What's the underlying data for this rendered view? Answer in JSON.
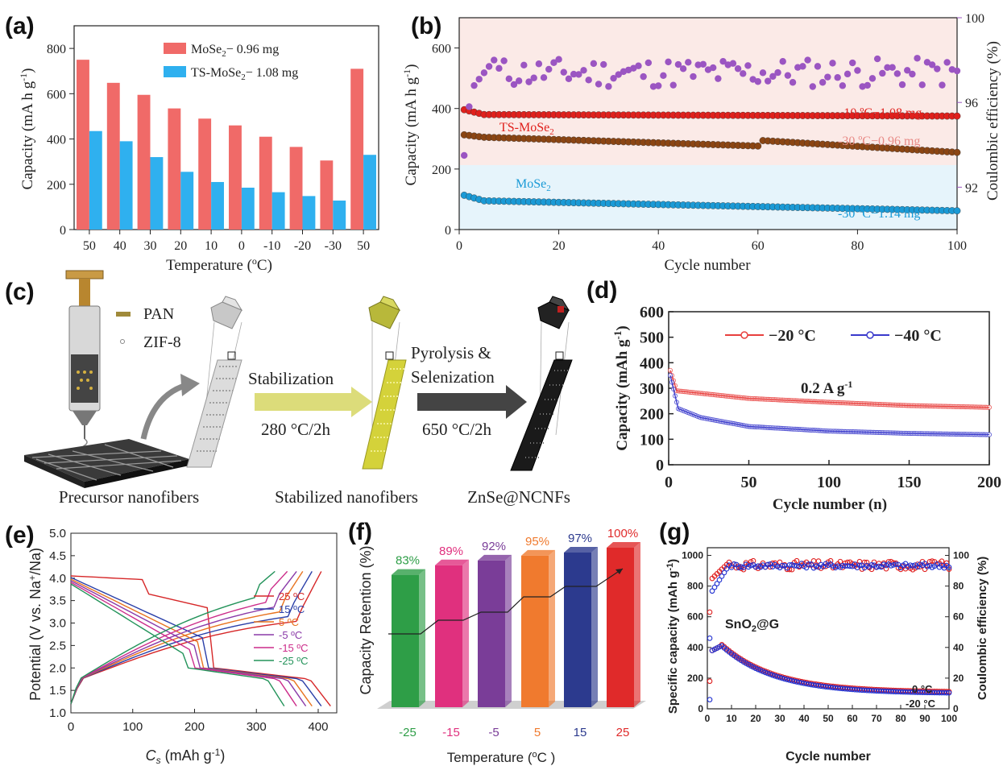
{
  "panels": {
    "a": {
      "letter": "(a)",
      "chart_data": {
        "type": "bar",
        "categories": [
          "50",
          "40",
          "30",
          "20",
          "10",
          "0",
          "-10",
          "-20",
          "-30",
          "50"
        ],
        "series": [
          {
            "name": "MoSe2− 0.96 mg",
            "color": "#f06a68",
            "values": [
              750,
              648,
              595,
              535,
              490,
              460,
              410,
              365,
              305,
              710
            ]
          },
          {
            "name": "TS-MoSe2− 1.08 mg",
            "color": "#2fb0ef",
            "values": [
              435,
              390,
              320,
              255,
              210,
              185,
              165,
              148,
              128,
              330
            ]
          }
        ],
        "legend": [
          "MoSe",
          "2",
          "− 0.96 mg",
          "TS-MoSe",
          "2",
          "− 1.08 mg"
        ],
        "xlabel": "Temperature (",
        "xlabel_sup": "o",
        "xlabel_end": "C)",
        "ylabel": "Capacity (mA h g",
        "ylabel_sup": "-1",
        "ylabel_end": ")",
        "ylim": [
          0,
          900
        ],
        "yticks": [
          0,
          200,
          400,
          600,
          800
        ]
      }
    },
    "b": {
      "letter": "(b)",
      "chart_data": {
        "type": "scatter",
        "xlim": [
          0,
          100
        ],
        "xticks": [
          0,
          20,
          40,
          60,
          80,
          100
        ],
        "ylim": [
          0,
          700
        ],
        "yticks": [
          0,
          200,
          400,
          600
        ],
        "y2lim": [
          90,
          100
        ],
        "y2ticks": [
          92,
          96,
          100
        ],
        "xlabel": "Cycle number",
        "ylabel": "Capacity (mA h g",
        "ylabel_sup": "-1",
        "ylabel_end": ")",
        "y2label": "Coulombic efficiency (%)",
        "series": [
          {
            "name": "-10 ºC−1.08 mg",
            "color": "#e0201c",
            "start": 400,
            "plateau": 380,
            "end": 375
          },
          {
            "name": "-30 ºC−0.96 mg",
            "color": "#8b4513",
            "start": 315,
            "plateau": 305,
            "end": 255
          },
          {
            "name": "-30 ºC−1.14 mg",
            "color": "#1a9ad6",
            "start": 118,
            "plateau": 95,
            "end": 62
          },
          {
            "name": "CE",
            "color": "#9b55c2",
            "axis": "y2"
          }
        ],
        "labels": {
          "ts": "TS-MoSe",
          "ts_sub": "2",
          "mo": "MoSe",
          "mo_sub": "2",
          "l1": "-10 ºC−1.08 mg",
          "l2": "-30 ºC−0.96 mg",
          "l3": "-30 ºC−1.14 mg"
        }
      }
    },
    "c": {
      "letter": "(c)",
      "legend_pan": "PAN",
      "legend_zif": "ZIF-8",
      "step1_top": "Stabilization",
      "step1_bottom": "280 °C/2h",
      "step2_top1": "Pyrolysis &",
      "step2_top2": "Selenization",
      "step2_bottom": "650 °C/2h",
      "cap1": "Precursor nanofibers",
      "cap2": "Stabilized nanofibers",
      "cap3": "ZnSe@NCNFs"
    },
    "d": {
      "letter": "(d)",
      "chart_data": {
        "type": "line",
        "xlim": [
          0,
          200
        ],
        "xticks": [
          0,
          50,
          100,
          150,
          200
        ],
        "ylim": [
          0,
          600
        ],
        "yticks": [
          0,
          100,
          200,
          300,
          400,
          500,
          600
        ],
        "xlabel": "Cycle number (n)",
        "ylabel": "Capacity (mAh g",
        "ylabel_sup": "-1",
        "ylabel_end": ")",
        "annotation": "0.2 A g",
        "annotation_sup": "-1",
        "series": [
          {
            "name": "−20 °C",
            "color": "#e8403e",
            "points": [
              [
                1,
                370
              ],
              [
                5,
                290
              ],
              [
                20,
                280
              ],
              [
                50,
                260
              ],
              [
                100,
                245
              ],
              [
                150,
                232
              ],
              [
                200,
                225
              ]
            ]
          },
          {
            "name": "−40 °C",
            "color": "#3a3acc",
            "points": [
              [
                1,
                350
              ],
              [
                4,
                270
              ],
              [
                6,
                220
              ],
              [
                20,
                185
              ],
              [
                50,
                150
              ],
              [
                100,
                132
              ],
              [
                150,
                123
              ],
              [
                200,
                118
              ]
            ]
          }
        ]
      }
    },
    "e": {
      "letter": "(e)",
      "chart_data": {
        "type": "line",
        "xlim": [
          0,
          430
        ],
        "xticks": [
          0,
          100,
          200,
          300,
          400
        ],
        "ylim": [
          1.0,
          5.0
        ],
        "yticks": [
          1.0,
          1.5,
          2.0,
          2.5,
          3.0,
          3.5,
          4.0,
          4.5,
          5.0
        ],
        "xlabel": "C",
        "xlabel_sub": "s",
        "xlabel_end": " (mAh g",
        "xlabel_sup": "-1",
        "xlabel_end2": ")",
        "ylabel": "Potential (V vs. Na",
        "ylabel_sup": "+",
        "ylabel_end": "/Na)",
        "series": [
          {
            "name": "25 ºC",
            "color": "#d62728",
            "capacity": 420
          },
          {
            "name": "15 ºC",
            "color": "#2a3fa8",
            "capacity": 405
          },
          {
            "name": "5 ºC",
            "color": "#e8731f",
            "capacity": 390
          },
          {
            "name": "-5 ºC",
            "color": "#8a3aa8",
            "capacity": 380
          },
          {
            "name": "-15 ºC",
            "color": "#cc2c8a",
            "capacity": 365
          },
          {
            "name": "-25 ºC",
            "color": "#23935a",
            "capacity": 345
          }
        ]
      }
    },
    "f": {
      "letter": "(f)",
      "chart_data": {
        "type": "bar",
        "categories": [
          "-25",
          "-15",
          "-5",
          "5",
          "15",
          "25"
        ],
        "values": [
          83,
          89,
          92,
          95,
          97,
          100
        ],
        "value_labels": [
          "83%",
          "89%",
          "92%",
          "95%",
          "97%",
          "100%"
        ],
        "colors": [
          "#2e9e47",
          "#e0307e",
          "#7a3d98",
          "#f07a2e",
          "#2c3a8e",
          "#e02a2a"
        ],
        "xlabel": "Temperature (",
        "xlabel_sup": "o",
        "xlabel_end": "C )",
        "ylabel": "Capacity Retention (%)"
      }
    },
    "g": {
      "letter": "(g)",
      "chart_data": {
        "type": "scatter",
        "xlim": [
          0,
          100
        ],
        "xticks": [
          0,
          10,
          20,
          30,
          40,
          50,
          60,
          70,
          80,
          90,
          100
        ],
        "ylim": [
          0,
          1050
        ],
        "yticks": [
          0,
          200,
          400,
          600,
          800,
          1000
        ],
        "y2lim": [
          0,
          105
        ],
        "y2ticks": [
          0,
          20,
          40,
          60,
          80,
          100
        ],
        "xlabel": "Cycle number",
        "ylabel": "Specific capacity (mAh g",
        "ylabel_sup": "-1",
        "ylabel_end": ")",
        "y2label": "Coulombic efficiency (%)",
        "inner_label": "SnO",
        "inner_label_sub": "2",
        "inner_label_end": "@G",
        "series": [
          {
            "name": "0 °C",
            "color": "#e02020"
          },
          {
            "name": "-20 °C",
            "color": "#2030d0"
          }
        ]
      }
    }
  }
}
